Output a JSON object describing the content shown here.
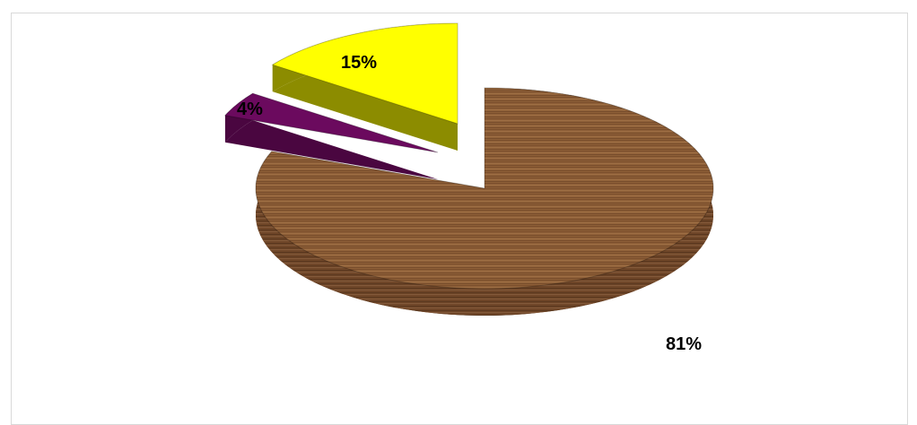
{
  "chart_data": {
    "type": "pie",
    "style": "3d-exploded",
    "categories": [
      "",
      "",
      ""
    ],
    "values": [
      81,
      4,
      15
    ],
    "data_labels": [
      "81%",
      "4%",
      "15%"
    ],
    "colors": [
      "#8a5a34",
      "#6b0a5e",
      "#ffff00"
    ],
    "side_colors": [
      "#6b4226",
      "#4a0640",
      "#8c8c00"
    ],
    "title": "",
    "legend": "none"
  }
}
